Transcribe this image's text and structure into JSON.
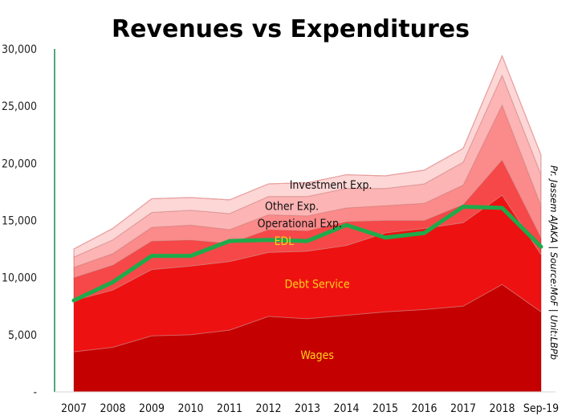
{
  "chart_data": {
    "type": "area",
    "title": "Revenues vs Expenditures",
    "source_note": "Pr. Jassem AJAKA | Source:MoF | Unit:LBPb",
    "categories": [
      "2007",
      "2008",
      "2009",
      "2010",
      "2011",
      "2012",
      "2013",
      "2014",
      "2015",
      "2016",
      "2017",
      "2018",
      "Sep-19"
    ],
    "y_tick_labels": [
      "-",
      "5,000",
      "10,000",
      "15,000",
      "20,000",
      "25,000",
      "30,000"
    ],
    "ylim": [
      0,
      30000
    ],
    "stacked": true,
    "series": [
      {
        "name": "Wages",
        "color": "#c40000",
        "values": [
          3500,
          3900,
          4900,
          5000,
          5400,
          6600,
          6400,
          6700,
          7000,
          7200,
          7500,
          9400,
          7000
        ]
      },
      {
        "name": "Debt Service",
        "color": "#ee1111",
        "values": [
          4500,
          5000,
          5800,
          6000,
          6000,
          5600,
          5900,
          6100,
          6900,
          7100,
          7300,
          7800,
          5000
        ]
      },
      {
        "name": "EDL",
        "color": "#f64848",
        "values": [
          2000,
          2200,
          2500,
          2300,
          1600,
          2000,
          1800,
          2100,
          1100,
          700,
          1600,
          3100,
          1500
        ]
      },
      {
        "name": "Operational Exp.",
        "color": "#fb8a8a",
        "values": [
          900,
          1000,
          1200,
          1300,
          1200,
          1300,
          1300,
          1200,
          1300,
          1500,
          1700,
          4800,
          2800
        ]
      },
      {
        "name": "Other Exp.",
        "color": "#fcb4b4",
        "values": [
          900,
          1200,
          1300,
          1300,
          1400,
          1600,
          1700,
          1700,
          1500,
          1700,
          2000,
          2600,
          2700
        ]
      },
      {
        "name": "Investment Exp.",
        "color": "#fdd6d6",
        "values": [
          700,
          1000,
          1200,
          1100,
          1200,
          1100,
          1200,
          1200,
          1100,
          1200,
          1200,
          1700,
          1700
        ]
      }
    ],
    "line_series": {
      "name": "Revenues",
      "color": "#1faa4b",
      "values": [
        8000,
        9600,
        11900,
        11900,
        13200,
        13300,
        13200,
        14600,
        13500,
        13900,
        16200,
        16100,
        12700
      ]
    },
    "grid": false,
    "legend": "none"
  }
}
